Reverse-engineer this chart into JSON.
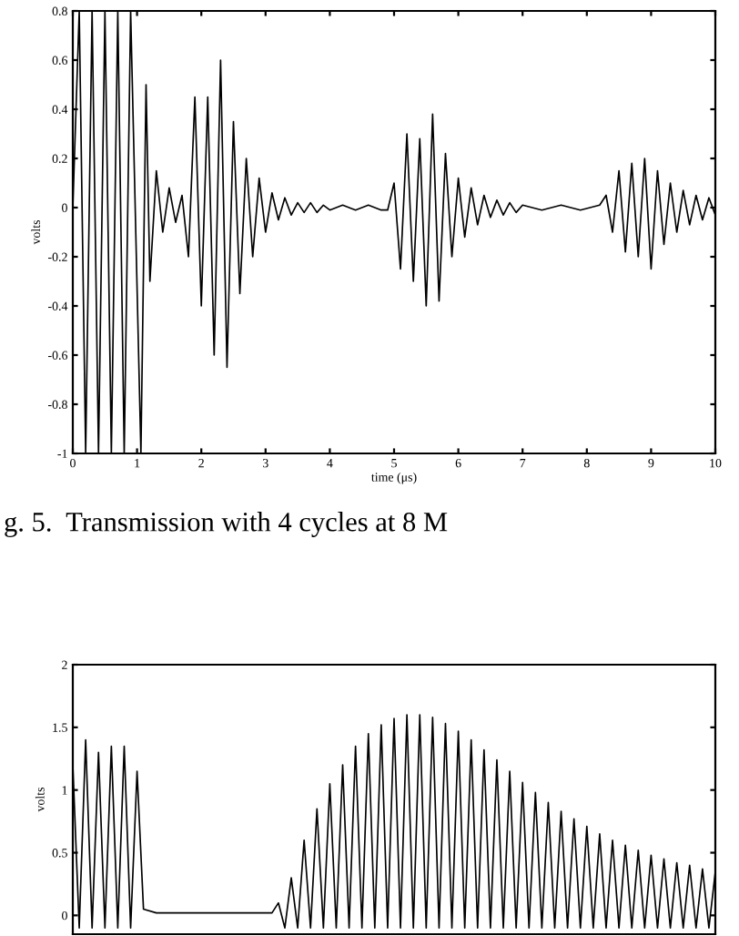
{
  "chart_data": [
    {
      "type": "line",
      "xlabel": "time (μs)",
      "ylabel": "volts",
      "xlim": [
        0,
        10
      ],
      "ylim": [
        -1,
        0.8
      ],
      "xticks": [
        0,
        1,
        2,
        3,
        4,
        5,
        6,
        7,
        8,
        9,
        10
      ],
      "yticks": [
        -1,
        -0.8,
        -0.6,
        -0.4,
        -0.2,
        0,
        0.2,
        0.4,
        0.6,
        0.8
      ],
      "grid": false,
      "legend": false,
      "marker": "none",
      "line_style": "solid",
      "annotations": [
        "g. 5.  Transmission with 4 cycles at 8 M"
      ],
      "series": [
        {
          "color": "#000000",
          "x": [
            0,
            0.1,
            0.2,
            0.3,
            0.4,
            0.5,
            0.6,
            0.7,
            0.8,
            0.9,
            1.06,
            1.14,
            1.2,
            1.3,
            1.4,
            1.5,
            1.6,
            1.7,
            1.8,
            1.9,
            2,
            2.1,
            2.2,
            2.3,
            2.4,
            2.5,
            2.6,
            2.7,
            2.8,
            2.9,
            3,
            3.1,
            3.2,
            3.3,
            3.4,
            3.5,
            3.6,
            3.7,
            3.8,
            3.9,
            4,
            4.2,
            4.4,
            4.6,
            4.8,
            4.9,
            5,
            5.1,
            5.2,
            5.3,
            5.4,
            5.5,
            5.6,
            5.7,
            5.8,
            5.9,
            6,
            6.1,
            6.2,
            6.3,
            6.4,
            6.5,
            6.6,
            6.7,
            6.8,
            6.9,
            7,
            7.3,
            7.6,
            7.9,
            8.2,
            8.3,
            8.4,
            8.5,
            8.6,
            8.7,
            8.8,
            8.9,
            9,
            9.1,
            9.2,
            9.3,
            9.4,
            9.5,
            9.6,
            9.7,
            9.8,
            9.9,
            10
          ],
          "values": [
            0,
            0.8,
            -1,
            0.8,
            -1,
            0.8,
            -1,
            0.8,
            -1,
            0.8,
            -1,
            0.5,
            -0.3,
            0.15,
            -0.1,
            0.08,
            -0.06,
            0.05,
            -0.2,
            0.45,
            -0.4,
            0.45,
            -0.6,
            0.6,
            -0.65,
            0.35,
            -0.35,
            0.2,
            -0.2,
            0.12,
            -0.1,
            0.06,
            -0.05,
            0.04,
            -0.03,
            0.02,
            -0.02,
            0.02,
            -0.02,
            0.01,
            -0.01,
            0.01,
            -0.01,
            0.01,
            -0.01,
            -0.01,
            0.1,
            -0.25,
            0.3,
            -0.3,
            0.28,
            -0.4,
            0.38,
            -0.38,
            0.22,
            -0.2,
            0.12,
            -0.12,
            0.08,
            -0.07,
            0.05,
            -0.04,
            0.03,
            -0.03,
            0.02,
            -0.02,
            0.01,
            -0.01,
            0.01,
            -0.01,
            0.01,
            0.05,
            -0.1,
            0.15,
            -0.18,
            0.18,
            -0.2,
            0.2,
            -0.25,
            0.15,
            -0.15,
            0.1,
            -0.1,
            0.07,
            -0.07,
            0.05,
            -0.05,
            0.04,
            -0.03
          ]
        }
      ]
    },
    {
      "type": "line",
      "ylabel": "volts",
      "xlim": [
        0,
        10
      ],
      "ylim": [
        -0.15,
        2
      ],
      "yticks": [
        0,
        0.5,
        1,
        1.5,
        2
      ],
      "tick_labels": "y",
      "grid": false,
      "legend": false,
      "marker": "none",
      "line_style": "solid",
      "series": [
        {
          "color": "#000000",
          "x": [
            0,
            0.1,
            0.2,
            0.3,
            0.4,
            0.5,
            0.6,
            0.7,
            0.8,
            0.9,
            1,
            1.1,
            1.3,
            1.5,
            1.7,
            1.9,
            2.1,
            2.3,
            2.5,
            2.7,
            2.9,
            3.1,
            3.2,
            3.3,
            3.4,
            3.5,
            3.6,
            3.7,
            3.8,
            3.9,
            4,
            4.1,
            4.2,
            4.3,
            4.4,
            4.5,
            4.6,
            4.7,
            4.8,
            4.9,
            5,
            5.1,
            5.2,
            5.3,
            5.4,
            5.5,
            5.6,
            5.7,
            5.8,
            5.9,
            6,
            6.1,
            6.2,
            6.3,
            6.4,
            6.5,
            6.6,
            6.7,
            6.8,
            6.9,
            7,
            7.1,
            7.2,
            7.3,
            7.4,
            7.5,
            7.6,
            7.7,
            7.8,
            7.9,
            8,
            8.1,
            8.2,
            8.3,
            8.4,
            8.5,
            8.6,
            8.7,
            8.8,
            8.9,
            9,
            9.1,
            9.2,
            9.3,
            9.4,
            9.5,
            9.6,
            9.7,
            9.8,
            9.9,
            10
          ],
          "values": [
            1.2,
            -0.1,
            1.4,
            -0.1,
            1.3,
            -0.1,
            1.35,
            -0.1,
            1.35,
            -0.1,
            1.15,
            0.05,
            0.02,
            0.02,
            0.02,
            0.02,
            0.02,
            0.02,
            0.02,
            0.02,
            0.02,
            0.02,
            0.1,
            -0.1,
            0.3,
            -0.1,
            0.6,
            -0.1,
            0.85,
            -0.1,
            1.05,
            -0.1,
            1.2,
            -0.1,
            1.35,
            -0.1,
            1.45,
            -0.1,
            1.52,
            -0.1,
            1.57,
            -0.1,
            1.6,
            -0.1,
            1.6,
            -0.1,
            1.58,
            -0.1,
            1.53,
            -0.1,
            1.47,
            -0.1,
            1.4,
            -0.1,
            1.32,
            -0.1,
            1.24,
            -0.1,
            1.15,
            -0.1,
            1.06,
            -0.1,
            0.98,
            -0.1,
            0.9,
            -0.1,
            0.83,
            -0.1,
            0.77,
            -0.1,
            0.71,
            -0.1,
            0.65,
            -0.1,
            0.6,
            -0.1,
            0.56,
            -0.1,
            0.52,
            -0.1,
            0.48,
            -0.1,
            0.45,
            -0.1,
            0.42,
            -0.1,
            0.4,
            -0.1,
            0.37,
            -0.1,
            0.35
          ]
        }
      ]
    }
  ]
}
